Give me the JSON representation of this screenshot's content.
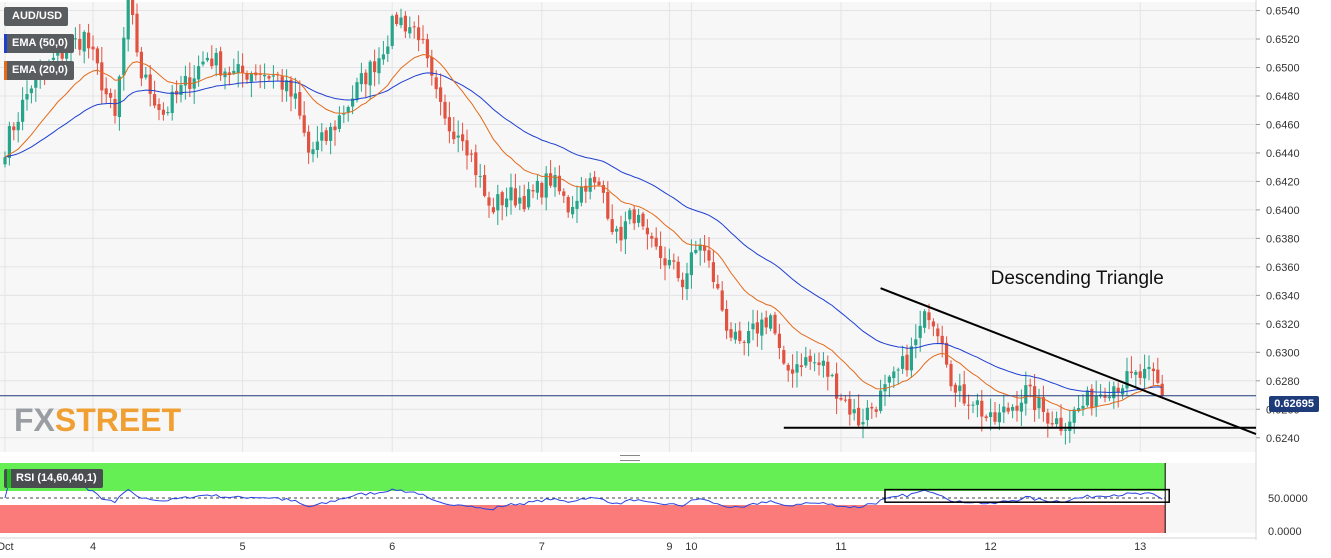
{
  "symbol": "AUD/USD",
  "indicators": {
    "ema50": {
      "label": "EMA (50,0)",
      "color": "#1e3fd0"
    },
    "ema20": {
      "label": "EMA (20,0)",
      "color": "#e36b1a"
    },
    "rsi": {
      "label": "RSI (14,60,40,1)"
    }
  },
  "last_price": "0.62695",
  "watermark": {
    "fx": "FX",
    "street": "STREET"
  },
  "colors": {
    "up": "#27a58a",
    "down": "#e15241",
    "price_line": "#1f3c7a",
    "rsi_line": "#2b45e0",
    "rsi_upper": "#66ee55",
    "rsi_lower": "#fb7a7a"
  },
  "chart_data": {
    "type": "candlestick",
    "ylim": [
      0.623,
      0.6546
    ],
    "y_ticks": [
      "0.6540",
      "0.6520",
      "0.6500",
      "0.6480",
      "0.6460",
      "0.6440",
      "0.6420",
      "0.6400",
      "0.6380",
      "0.6360",
      "0.6340",
      "0.6320",
      "0.6300",
      "0.6280",
      "0.6260",
      "0.6240"
    ],
    "x_ticks": [
      {
        "label": "Oct",
        "bar": 0
      },
      {
        "label": "4",
        "bar": 20
      },
      {
        "label": "5",
        "bar": 54
      },
      {
        "label": "6",
        "bar": 88
      },
      {
        "label": "7",
        "bar": 122
      },
      {
        "label": "9",
        "bar": 151
      },
      {
        "label": "10",
        "bar": 156
      },
      {
        "label": "11",
        "bar": 190
      },
      {
        "label": "12",
        "bar": 224
      },
      {
        "label": "13",
        "bar": 258
      }
    ],
    "annotation": "Descending Triangle",
    "price_path": [
      [
        0,
        0.6445
      ],
      [
        6,
        0.6488
      ],
      [
        12,
        0.6508
      ],
      [
        18,
        0.6522
      ],
      [
        22,
        0.649
      ],
      [
        25,
        0.6463
      ],
      [
        28,
        0.6548
      ],
      [
        31,
        0.6495
      ],
      [
        36,
        0.6468
      ],
      [
        41,
        0.6488
      ],
      [
        46,
        0.6508
      ],
      [
        52,
        0.6495
      ],
      [
        57,
        0.6498
      ],
      [
        62,
        0.6493
      ],
      [
        66,
        0.6476
      ],
      [
        69,
        0.644
      ],
      [
        73,
        0.645
      ],
      [
        77,
        0.647
      ],
      [
        81,
        0.649
      ],
      [
        85,
        0.6508
      ],
      [
        89,
        0.6535
      ],
      [
        94,
        0.6525
      ],
      [
        97,
        0.6488
      ],
      [
        100,
        0.646
      ],
      [
        104,
        0.6455
      ],
      [
        108,
        0.642
      ],
      [
        110,
        0.64
      ],
      [
        114,
        0.641
      ],
      [
        119,
        0.6408
      ],
      [
        124,
        0.6422
      ],
      [
        128,
        0.6402
      ],
      [
        132,
        0.642
      ],
      [
        136,
        0.6412
      ],
      [
        139,
        0.638
      ],
      [
        143,
        0.6398
      ],
      [
        146,
        0.6375
      ],
      [
        150,
        0.6365
      ],
      [
        154,
        0.635
      ],
      [
        158,
        0.6378
      ],
      [
        161,
        0.6352
      ],
      [
        164,
        0.632
      ],
      [
        167,
        0.63
      ],
      [
        171,
        0.6318
      ],
      [
        174,
        0.6326
      ],
      [
        177,
        0.6285
      ],
      [
        181,
        0.6295
      ],
      [
        186,
        0.629
      ],
      [
        190,
        0.627
      ],
      [
        194,
        0.6252
      ],
      [
        198,
        0.6265
      ],
      [
        202,
        0.628
      ],
      [
        206,
        0.63
      ],
      [
        210,
        0.633
      ],
      [
        213,
        0.6312
      ],
      [
        216,
        0.627
      ],
      [
        220,
        0.6268
      ],
      [
        224,
        0.625
      ],
      [
        228,
        0.626
      ],
      [
        232,
        0.6272
      ],
      [
        236,
        0.6258
      ],
      [
        240,
        0.625
      ],
      [
        244,
        0.626
      ],
      [
        247,
        0.6268
      ],
      [
        250,
        0.6276
      ],
      [
        254,
        0.6279
      ],
      [
        258,
        0.6283
      ],
      [
        261,
        0.6282
      ],
      [
        263,
        0.627
      ]
    ],
    "rsi": {
      "ylim": [
        0,
        100
      ],
      "levels": [
        60,
        40
      ],
      "ticks": [
        "50.0000",
        "0.0000"
      ]
    },
    "triangle": {
      "upper": [
        [
          199,
          0.6345
        ],
        [
          261.5,
          0.627
        ]
      ],
      "lower": [
        [
          177,
          0.6247
        ],
        [
          263,
          0.6247
        ]
      ]
    }
  }
}
